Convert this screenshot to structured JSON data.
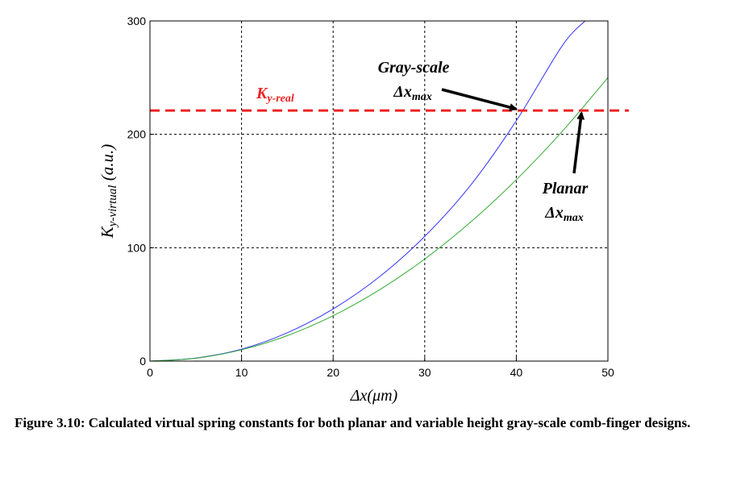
{
  "chart_data": {
    "type": "line",
    "xlabel": {
      "main": "Δx(μm)"
    },
    "ylabel": {
      "base": "K",
      "sub": "y-virtual",
      "rest": " (a.u.)"
    },
    "xlim": [
      0,
      50
    ],
    "ylim": [
      0,
      300
    ],
    "x_ticks": [
      0,
      10,
      20,
      30,
      40,
      50
    ],
    "y_ticks": [
      0,
      100,
      200,
      300
    ],
    "grid": true,
    "series": [
      {
        "name": "Gray-scale",
        "color": "#3333ff",
        "x": [
          0,
          5,
          10,
          15,
          20,
          25,
          30,
          35,
          40,
          45,
          47.5
        ],
        "y": [
          0,
          2.7,
          10.5,
          25,
          46,
          74,
          110,
          155,
          212,
          278,
          300
        ]
      },
      {
        "name": "Planar",
        "color": "#33aa33",
        "x": [
          0,
          5,
          10,
          15,
          20,
          25,
          30,
          35,
          40,
          45,
          50
        ],
        "y": [
          0,
          2.5,
          10,
          22.5,
          40,
          62.5,
          90,
          122.5,
          160,
          202.5,
          250
        ]
      }
    ],
    "reference_line": {
      "y": 221,
      "color": "#ee2222",
      "label_base": "K",
      "label_sub": "y-real"
    },
    "annotations": [
      {
        "line1": "Gray-scale",
        "line2_base": "Δx",
        "line2_sub": "max",
        "target": [
          40.5,
          221
        ]
      },
      {
        "line1": "Planar",
        "line2_base": "Δx",
        "line2_sub": "max",
        "target": [
          47.2,
          221
        ]
      }
    ]
  },
  "caption": {
    "label": "Figure 3.10:",
    "text": " Calculated virtual spring constants for both planar and variable height gray-scale comb-finger designs."
  }
}
